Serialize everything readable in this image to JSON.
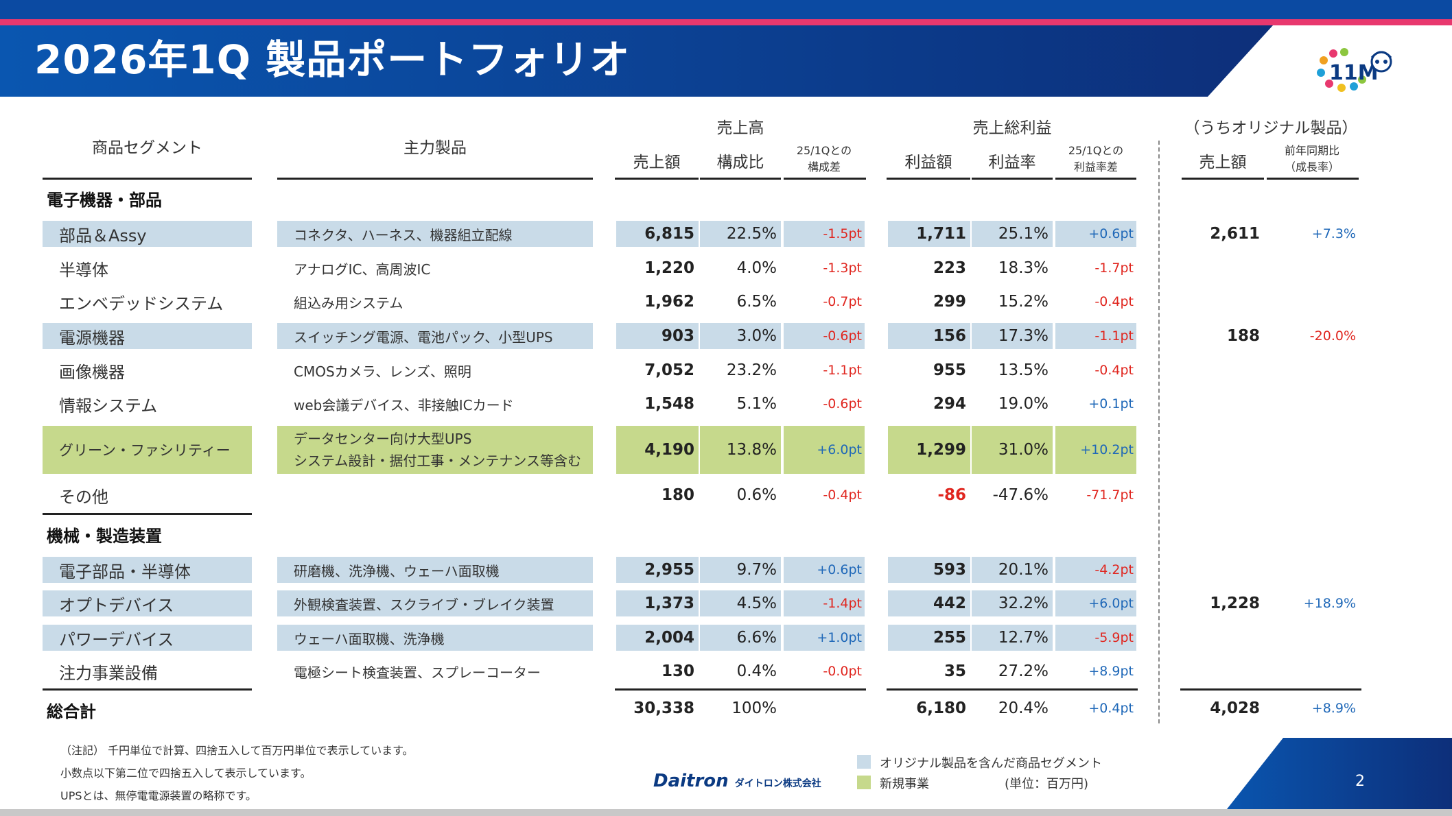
{
  "header": {
    "title": "2026年1Q 製品ポートフォリオ",
    "logo_text": "11M"
  },
  "columns": {
    "segment": "商品セグメント",
    "product": "主力製品",
    "sales_group": "売上高",
    "sales_amount": "売上額",
    "sales_ratio": "構成比",
    "sales_diff_l1": "25/1Qとの",
    "sales_diff_l2": "構成差",
    "profit_group": "売上総利益",
    "profit_amount": "利益額",
    "profit_rate": "利益率",
    "profit_diff_l1": "25/1Qとの",
    "profit_diff_l2": "利益率差",
    "original_group": "（うちオリジナル製品）",
    "orig_sales": "売上額",
    "orig_growth_l1": "前年同期比",
    "orig_growth_l2": "（成長率）"
  },
  "sections": {
    "electronics": "電子機器・部品",
    "machinery": "機械・製造装置",
    "total": "総合計"
  },
  "rows": [
    {
      "segment": "部品＆Assy",
      "product": "コネクタ、ハーネス、機器組立配線",
      "sales": "6,815",
      "ratio": "22.5%",
      "ratio_diff": "-1.5pt",
      "profit": "1,711",
      "rate": "25.1%",
      "rate_diff": "+0.6pt",
      "orig_sales": "2,611",
      "orig_growth": "+7.3%"
    },
    {
      "segment": "半導体",
      "product": "アナログIC、高周波IC",
      "sales": "1,220",
      "ratio": "4.0%",
      "ratio_diff": "-1.3pt",
      "profit": "223",
      "rate": "18.3%",
      "rate_diff": "-1.7pt",
      "orig_sales": "",
      "orig_growth": ""
    },
    {
      "segment": "エンベデッドシステム",
      "product": "組込み用システム",
      "sales": "1,962",
      "ratio": "6.5%",
      "ratio_diff": "-0.7pt",
      "profit": "299",
      "rate": "15.2%",
      "rate_diff": "-0.4pt",
      "orig_sales": "",
      "orig_growth": ""
    },
    {
      "segment": "電源機器",
      "product": "スイッチング電源、電池パック、小型UPS",
      "sales": "903",
      "ratio": "3.0%",
      "ratio_diff": "-0.6pt",
      "profit": "156",
      "rate": "17.3%",
      "rate_diff": "-1.1pt",
      "orig_sales": "188",
      "orig_growth": "-20.0%"
    },
    {
      "segment": "画像機器",
      "product": "CMOSカメラ、レンズ、照明",
      "sales": "7,052",
      "ratio": "23.2%",
      "ratio_diff": "-1.1pt",
      "profit": "955",
      "rate": "13.5%",
      "rate_diff": "-0.4pt",
      "orig_sales": "",
      "orig_growth": ""
    },
    {
      "segment": "情報システム",
      "product": "web会議デバイス、非接触ICカード",
      "sales": "1,548",
      "ratio": "5.1%",
      "ratio_diff": "-0.6pt",
      "profit": "294",
      "rate": "19.0%",
      "rate_diff": "+0.1pt",
      "orig_sales": "",
      "orig_growth": ""
    },
    {
      "segment": "グリーン・ファシリティー",
      "product_l1": "データセンター向け大型UPS",
      "product_l2": "システム設計・据付工事・メンテナンス等含む",
      "sales": "4,190",
      "ratio": "13.8%",
      "ratio_diff": "+6.0pt",
      "profit": "1,299",
      "rate": "31.0%",
      "rate_diff": "+10.2pt",
      "orig_sales": "",
      "orig_growth": ""
    },
    {
      "segment": "その他",
      "product": "",
      "sales": "180",
      "ratio": "0.6%",
      "ratio_diff": "-0.4pt",
      "profit": "-86",
      "rate": "-47.6%",
      "rate_diff": "-71.7pt",
      "orig_sales": "",
      "orig_growth": ""
    },
    {
      "segment": "電子部品・半導体",
      "product": "研磨機、洗浄機、ウェーハ面取機",
      "sales": "2,955",
      "ratio": "9.7%",
      "ratio_diff": "+0.6pt",
      "profit": "593",
      "rate": "20.1%",
      "rate_diff": "-4.2pt",
      "orig_sales": "",
      "orig_growth": ""
    },
    {
      "segment": "オプトデバイス",
      "product": "外観検査装置、スクライブ・ブレイク装置",
      "sales": "1,373",
      "ratio": "4.5%",
      "ratio_diff": "-1.4pt",
      "profit": "442",
      "rate": "32.2%",
      "rate_diff": "+6.0pt",
      "orig_sales": "1,228",
      "orig_growth": "+18.9%"
    },
    {
      "segment": "パワーデバイス",
      "product": "ウェーハ面取機、洗浄機",
      "sales": "2,004",
      "ratio": "6.6%",
      "ratio_diff": "+1.0pt",
      "profit": "255",
      "rate": "12.7%",
      "rate_diff": "-5.9pt",
      "orig_sales": "",
      "orig_growth": ""
    },
    {
      "segment": "注力事業設備",
      "product": "電極シート検査装置、スプレーコーター",
      "sales": "130",
      "ratio": "0.4%",
      "ratio_diff": "-0.0pt",
      "profit": "35",
      "rate": "27.2%",
      "rate_diff": "+8.9pt",
      "orig_sales": "",
      "orig_growth": ""
    }
  ],
  "total": {
    "sales": "30,338",
    "ratio": "100%",
    "profit": "6,180",
    "rate": "20.4%",
    "rate_diff": "+0.4pt",
    "orig_sales": "4,028",
    "orig_growth": "+8.9%"
  },
  "notes": [
    "（注記） 千円単位で計算、四捨五入して百万円単位で表示しています。",
    "小数点以下第二位で四捨五入して表示しています。",
    "UPSとは、無停電電源装置の略称です。"
  ],
  "legend": {
    "blue": "オリジナル製品を含んだ商品セグメント",
    "green": "新規事業",
    "unit": "(単位：百万円)"
  },
  "footer": {
    "brand": "Daitron",
    "brand_sub": "ダイトロン株式会社",
    "page": "2"
  },
  "colors": {
    "blue_fill": "#c9dbe8",
    "green_fill": "#c6d98c",
    "header_blue": "#0b4aa2",
    "accent_pink": "#e8386e",
    "negative": "#e0261f",
    "positive": "#1f68b8"
  }
}
